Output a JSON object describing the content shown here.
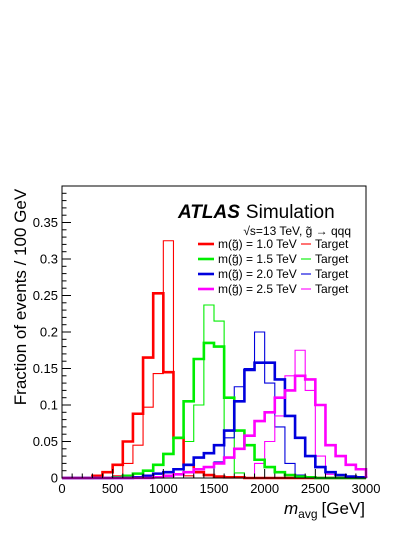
{
  "chart_data": {
    "type": "histogram",
    "xlabel": "m",
    "xlabel_sub": "avg",
    "xlabel_unit": "[GeV]",
    "ylabel": "Fraction of events / 100 GeV",
    "xlim": [
      0,
      3000
    ],
    "ylim": [
      0,
      0.4
    ],
    "bin_width": 100,
    "x_ticks": [
      "0",
      "500",
      "1000",
      "1500",
      "2000",
      "2500",
      "3000"
    ],
    "y_ticks": [
      "0",
      "0.05",
      "0.1",
      "0.15",
      "0.2",
      "0.25",
      "0.3",
      "0.35"
    ],
    "atlas_label": "ATLAS",
    "atlas_suffix": "Simulation",
    "process_label": "√s=13 TeV, g̃ → qqq",
    "grid": false,
    "legend_position": "top-right",
    "series": [
      {
        "name": "m(g̃) = 1.0 TeV",
        "color": "#ff0000",
        "style": "thick",
        "values": [
          0,
          0,
          0,
          0.003,
          0.008,
          0.018,
          0.05,
          0.088,
          0.165,
          0.253,
          0.145,
          0.055,
          0.018,
          0.008,
          0.004,
          0.002,
          0.001,
          0.001,
          0,
          0,
          0,
          0,
          0,
          0,
          0,
          0,
          0,
          0,
          0,
          0
        ]
      },
      {
        "name": "m(g̃) = 1.5 TeV",
        "color": "#00ee00",
        "style": "thick",
        "values": [
          0,
          0,
          0,
          0,
          0,
          0.001,
          0.003,
          0.006,
          0.01,
          0.018,
          0.033,
          0.055,
          0.105,
          0.163,
          0.185,
          0.18,
          0.11,
          0.065,
          0.045,
          0.025,
          0.015,
          0.008,
          0.004,
          0.002,
          0.001,
          0,
          0,
          0,
          0,
          0
        ]
      },
      {
        "name": "m(g̃) = 2.0 TeV",
        "color": "#0000dd",
        "style": "thick",
        "values": [
          0,
          0,
          0,
          0,
          0,
          0,
          0,
          0.001,
          0.003,
          0.006,
          0.008,
          0.012,
          0.018,
          0.028,
          0.034,
          0.045,
          0.065,
          0.105,
          0.148,
          0.158,
          0.158,
          0.135,
          0.085,
          0.055,
          0.03,
          0.015,
          0.008,
          0.004,
          0.002,
          0.001
        ]
      },
      {
        "name": "m(g̃) = 2.5 TeV",
        "color": "#ff00ff",
        "style": "thick",
        "values": [
          0,
          0,
          0,
          0,
          0,
          0,
          0,
          0,
          0,
          0.001,
          0.003,
          0.005,
          0.008,
          0.012,
          0.015,
          0.02,
          0.028,
          0.04,
          0.058,
          0.078,
          0.09,
          0.11,
          0.12,
          0.14,
          0.135,
          0.1,
          0.045,
          0.03,
          0.018,
          0.012
        ]
      },
      {
        "name": "Target",
        "color": "#ff0000",
        "style": "thin",
        "values": [
          0,
          0,
          0,
          0,
          0,
          0.003,
          0.02,
          0.045,
          0.097,
          0.143,
          0.325,
          0.055,
          0.003,
          0,
          0,
          0,
          0,
          0,
          0,
          0,
          0,
          0,
          0,
          0,
          0,
          0,
          0,
          0,
          0,
          0
        ]
      },
      {
        "name": "Target",
        "color": "#00ee00",
        "style": "thin",
        "values": [
          0,
          0,
          0,
          0,
          0,
          0,
          0,
          0,
          0,
          0,
          0,
          0.005,
          0.05,
          0.1,
          0.237,
          0.215,
          0.065,
          0.007,
          0,
          0,
          0,
          0,
          0,
          0,
          0,
          0,
          0,
          0,
          0,
          0
        ]
      },
      {
        "name": "Target",
        "color": "#0000dd",
        "style": "thin",
        "values": [
          0,
          0,
          0,
          0,
          0,
          0,
          0,
          0,
          0,
          0,
          0,
          0,
          0,
          0,
          0,
          0.022,
          0.055,
          0.125,
          0.15,
          0.2,
          0.13,
          0.07,
          0.02,
          0.004,
          0,
          0,
          0,
          0,
          0,
          0
        ]
      },
      {
        "name": "Target",
        "color": "#ff00ff",
        "style": "thin",
        "values": [
          0,
          0,
          0,
          0,
          0,
          0,
          0,
          0,
          0,
          0,
          0,
          0,
          0,
          0,
          0,
          0,
          0,
          0,
          0,
          0.02,
          0.05,
          0.085,
          0.14,
          0.175,
          0.12,
          0.03,
          0.005,
          0,
          0,
          0
        ]
      }
    ],
    "legend": [
      {
        "label": "m(g̃) = 1.0 TeV",
        "target_label": "Target",
        "color": "#ff0000"
      },
      {
        "label": "m(g̃) = 1.5 TeV",
        "target_label": "Target",
        "color": "#00ee00"
      },
      {
        "label": "m(g̃) = 2.0 TeV",
        "target_label": "Target",
        "color": "#0000dd"
      },
      {
        "label": "m(g̃) = 2.5 TeV",
        "target_label": "Target",
        "color": "#ff00ff"
      }
    ]
  }
}
